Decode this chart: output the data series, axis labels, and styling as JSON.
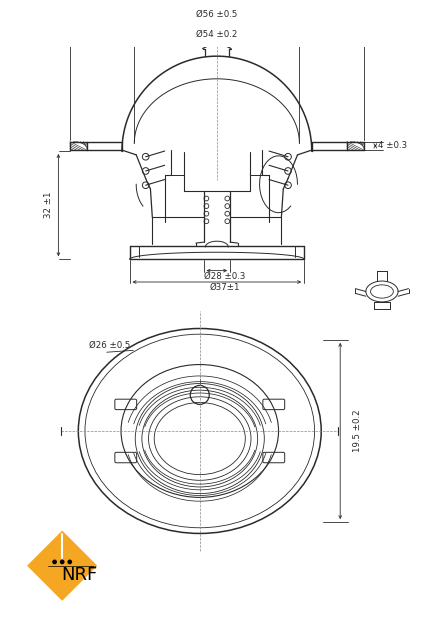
{
  "bg_color": "#ffffff",
  "line_color": "#2a2a2a",
  "dim_color": "#2a2a2a",
  "fig_width": 4.36,
  "fig_height": 6.0,
  "nrf_logo": {
    "diamond_color": "#F5A623",
    "text_color": "#000000"
  },
  "top_view": {
    "label_56": "Ø56 ±0.5",
    "label_54": "Ø54 ±0.2",
    "label_32": "32 ±1",
    "label_4": "4 ±0.3",
    "label_28": "Ø28 ±0.3",
    "label_37": "Ø37±1"
  },
  "bottom_view": {
    "label_26": "Ø26 ±0.5",
    "label_195": "19.5 ±0.2"
  }
}
